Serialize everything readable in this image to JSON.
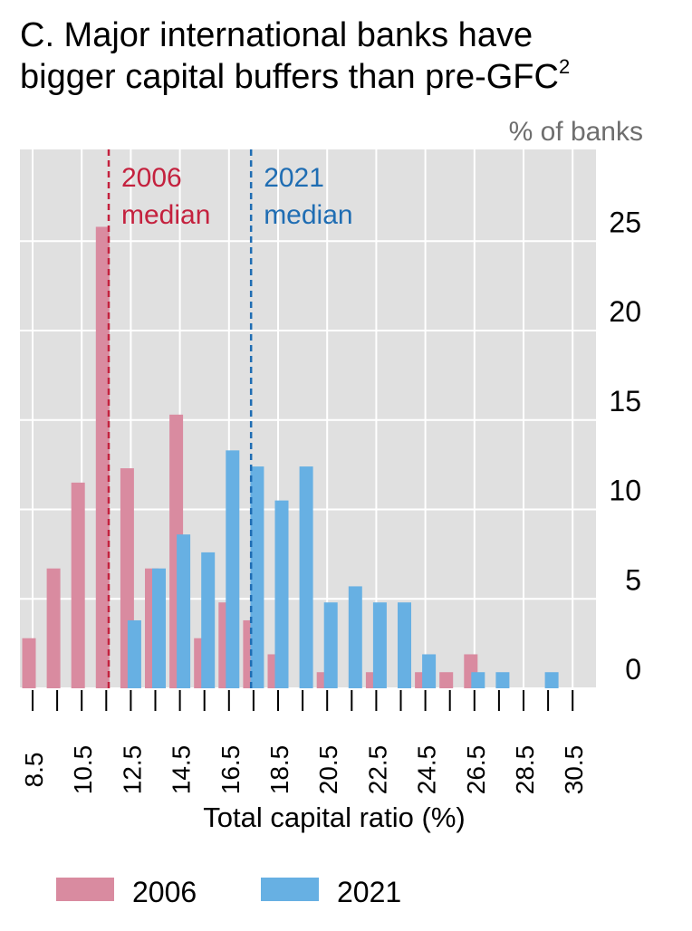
{
  "chart_data": {
    "type": "bar",
    "title": "C. Major international banks have bigger capital buffers than pre-GFC",
    "title_line1": "C. Major international banks have",
    "title_line2": "bigger capital buffers than pre-GFC",
    "title_footnote": "2",
    "ylabel": "% of banks",
    "xlabel": "Total capital ratio (%)",
    "ylim": [
      0,
      30
    ],
    "yticks": [
      0,
      5,
      10,
      15,
      20,
      25
    ],
    "x_bins": [
      8.5,
      9.5,
      10.5,
      11.5,
      12.5,
      13.5,
      14.5,
      15.5,
      16.5,
      17.5,
      18.5,
      19.5,
      20.5,
      21.5,
      22.5,
      23.5,
      24.5,
      25.5,
      26.5,
      27.5,
      28.5,
      29.5,
      30.5
    ],
    "x_tick_labels": [
      "8.5",
      "10.5",
      "12.5",
      "14.5",
      "16.5",
      "18.5",
      "20.5",
      "22.5",
      "24.5",
      "26.5",
      "28.5",
      "30.5"
    ],
    "series": [
      {
        "name": "2006",
        "color": "#d98ba0",
        "values": [
          2.8,
          6.7,
          11.5,
          25.8,
          12.3,
          6.7,
          15.3,
          2.8,
          4.8,
          3.8,
          1.9,
          0,
          0.9,
          0,
          0.9,
          0,
          0.9,
          0.9,
          1.9,
          0,
          0,
          0,
          0
        ]
      },
      {
        "name": "2021",
        "color": "#67b0e3",
        "values": [
          0,
          0,
          0,
          0,
          3.8,
          6.7,
          8.6,
          7.6,
          13.3,
          12.4,
          10.5,
          12.4,
          4.8,
          5.7,
          4.8,
          4.8,
          1.9,
          0,
          0.9,
          0.9,
          0,
          0.9,
          0
        ]
      }
    ],
    "medians": [
      {
        "series": "2006",
        "value": 11.6,
        "label1": "2006",
        "label2": "median",
        "color": "#c4213e"
      },
      {
        "series": "2021",
        "value": 17.4,
        "label1": "2021",
        "label2": "median",
        "color": "#1f6db3"
      }
    ],
    "legend": [
      {
        "label": "2006",
        "color": "#d98ba0"
      },
      {
        "label": "2021",
        "color": "#67b0e3"
      }
    ],
    "legend_position": "bottom",
    "grid": true
  }
}
